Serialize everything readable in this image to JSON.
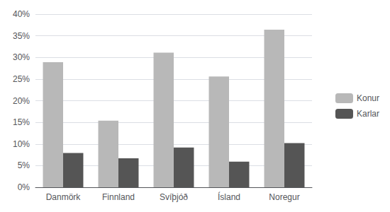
{
  "chart_data": {
    "type": "bar",
    "categories": [
      "Danmörk",
      "Finnland",
      "Svíþjóð",
      "Ísland",
      "Noregur"
    ],
    "series": [
      {
        "name": "Konur",
        "color": "#b8b8b8",
        "values": [
          0.289,
          0.154,
          0.311,
          0.256,
          0.364
        ]
      },
      {
        "name": "Karlar",
        "color": "#555555",
        "values": [
          0.079,
          0.067,
          0.092,
          0.059,
          0.102
        ]
      }
    ],
    "ylim": [
      0,
      0.4
    ],
    "yticks": [
      {
        "value": 0,
        "label": "0%"
      },
      {
        "value": 0.05,
        "label": "5%"
      },
      {
        "value": 0.1,
        "label": "10%"
      },
      {
        "value": 0.15,
        "label": "15%"
      },
      {
        "value": 0.2,
        "label": "20%"
      },
      {
        "value": 0.25,
        "label": "25%"
      },
      {
        "value": 0.3,
        "label": "30%"
      },
      {
        "value": 0.35,
        "label": "35%"
      },
      {
        "value": 0.4,
        "label": "40%"
      }
    ],
    "grid": true,
    "legend": "right"
  }
}
